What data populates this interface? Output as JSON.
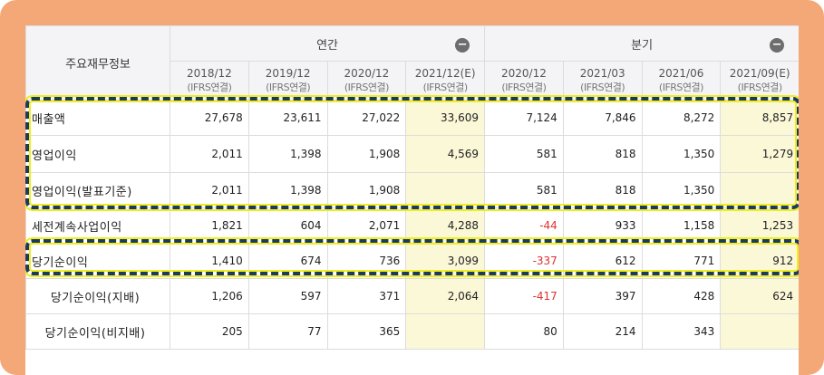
{
  "header": {
    "title": "주요재무정보",
    "groups": [
      {
        "label": "연간",
        "collapse": "−"
      },
      {
        "label": "분기",
        "collapse": "−"
      }
    ],
    "periods": [
      {
        "date": "2018/12",
        "basis": "(IFRS연결)"
      },
      {
        "date": "2019/12",
        "basis": "(IFRS연결)"
      },
      {
        "date": "2020/12",
        "basis": "(IFRS연결)"
      },
      {
        "date": "2021/12(E)",
        "basis": "(IFRS연결)"
      },
      {
        "date": "2020/12",
        "basis": "(IFRS연결)"
      },
      {
        "date": "2021/03",
        "basis": "(IFRS연결)"
      },
      {
        "date": "2021/06",
        "basis": "(IFRS연결)"
      },
      {
        "date": "2021/09(E)",
        "basis": "(IFRS연결)"
      }
    ]
  },
  "rows": [
    {
      "label": "매출액",
      "values": [
        "27,678",
        "23,611",
        "27,022",
        "33,609",
        "7,124",
        "7,846",
        "8,272",
        "8,857"
      ]
    },
    {
      "label": "영업이익",
      "values": [
        "2,011",
        "1,398",
        "1,908",
        "4,569",
        "581",
        "818",
        "1,350",
        "1,279"
      ]
    },
    {
      "label": "영업이익(발표기준)",
      "values": [
        "2,011",
        "1,398",
        "1,908",
        "",
        "581",
        "818",
        "1,350",
        ""
      ]
    },
    {
      "label": "세전계속사업이익",
      "values": [
        "1,821",
        "604",
        "2,071",
        "4,288",
        "-44",
        "933",
        "1,158",
        "1,253"
      ]
    },
    {
      "label": "당기순이익",
      "values": [
        "1,410",
        "674",
        "736",
        "3,099",
        "-337",
        "612",
        "771",
        "912"
      ]
    },
    {
      "label": "당기순이익(지배)",
      "values": [
        "1,206",
        "597",
        "371",
        "2,064",
        "-417",
        "397",
        "428",
        "624"
      ]
    },
    {
      "label": "당기순이익(비지배)",
      "values": [
        "205",
        "77",
        "365",
        "",
        "80",
        "214",
        "343",
        ""
      ]
    }
  ],
  "colors": {
    "frame": "#f4a878",
    "estimate_bg": "#fbf8d8",
    "negative": "#e03030",
    "highlight_dash": "#1a3a66",
    "highlight_glow": "#f1ee1a"
  }
}
